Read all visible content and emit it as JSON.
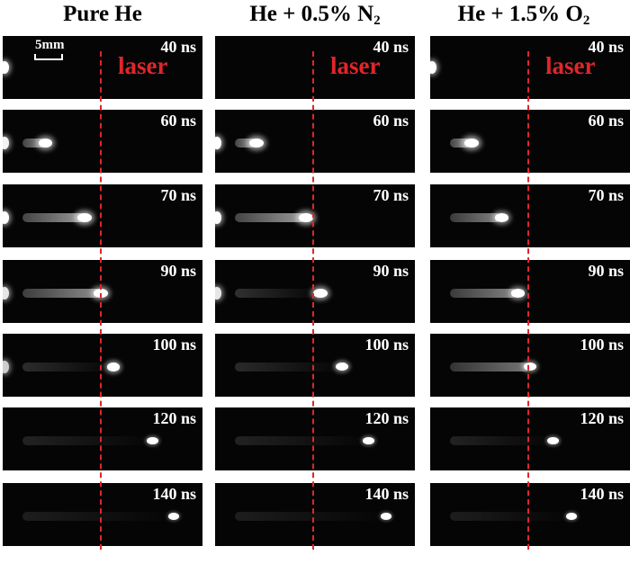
{
  "columns": [
    {
      "id": "pure-he",
      "title_main": "Pure He",
      "title_sub": "",
      "title_tail": "",
      "frames": [
        {
          "time": "40 ns",
          "progress": 0.0,
          "brightness": 1.0,
          "electrode": true
        },
        {
          "time": "60 ns",
          "progress": 0.18,
          "brightness": 0.95,
          "electrode": true
        },
        {
          "time": "70 ns",
          "progress": 0.4,
          "brightness": 1.0,
          "electrode": true
        },
        {
          "time": "90 ns",
          "progress": 0.49,
          "brightness": 0.9,
          "electrode": true
        },
        {
          "time": "100 ns",
          "progress": 0.56,
          "brightness": 0.8,
          "electrode": true
        },
        {
          "time": "120 ns",
          "progress": 0.78,
          "brightness": 0.6,
          "electrode": false
        },
        {
          "time": "140 ns",
          "progress": 0.9,
          "brightness": 0.5,
          "electrode": false
        }
      ]
    },
    {
      "id": "he-n2",
      "title_main": "He + 0.5% N",
      "title_sub": "2",
      "title_tail": "",
      "frames": [
        {
          "time": "40 ns",
          "progress": 0.0,
          "brightness": 0.3,
          "electrode": false
        },
        {
          "time": "60 ns",
          "progress": 0.17,
          "brightness": 1.0,
          "electrode": true
        },
        {
          "time": "70 ns",
          "progress": 0.45,
          "brightness": 1.0,
          "electrode": true
        },
        {
          "time": "90 ns",
          "progress": 0.53,
          "brightness": 0.9,
          "electrode": true
        },
        {
          "time": "100 ns",
          "progress": 0.65,
          "brightness": 0.75,
          "electrode": false
        },
        {
          "time": "120 ns",
          "progress": 0.8,
          "brightness": 0.6,
          "electrode": false
        },
        {
          "time": "140 ns",
          "progress": 0.9,
          "brightness": 0.5,
          "electrode": false
        }
      ]
    },
    {
      "id": "he-o2",
      "title_main": "He + 1.5% O",
      "title_sub": "2",
      "title_tail": "",
      "frames": [
        {
          "time": "40 ns",
          "progress": 0.0,
          "brightness": 1.0,
          "electrode": true
        },
        {
          "time": "60 ns",
          "progress": 0.17,
          "brightness": 1.0,
          "electrode": false
        },
        {
          "time": "70 ns",
          "progress": 0.34,
          "brightness": 0.85,
          "electrode": false
        },
        {
          "time": "90 ns",
          "progress": 0.43,
          "brightness": 0.85,
          "electrode": false
        },
        {
          "time": "100 ns",
          "progress": 0.5,
          "brightness": 0.75,
          "electrode": false
        },
        {
          "time": "120 ns",
          "progress": 0.63,
          "brightness": 0.6,
          "electrode": false
        },
        {
          "time": "140 ns",
          "progress": 0.73,
          "brightness": 0.5,
          "electrode": false
        }
      ]
    }
  ],
  "laser_label": "laser",
  "scale_label": "5mm",
  "colors": {
    "laser": "#e0262a",
    "background": "#050505",
    "text": "#ffffff"
  }
}
